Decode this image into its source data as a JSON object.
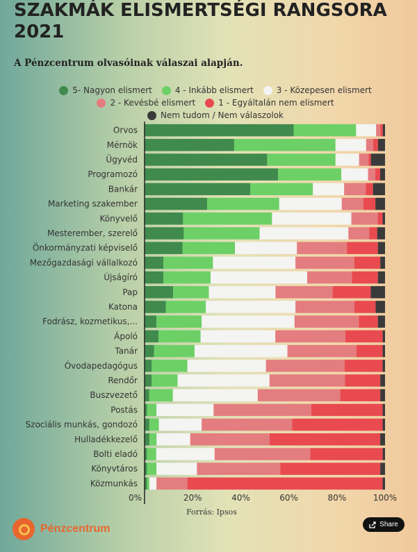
{
  "header": {
    "title": "SZAKMÁK ELISMERTSÉGI RANGSORA 2021",
    "subtitle": "A Pénzcentrum olvasóinak válaszai alapján."
  },
  "footer": {
    "source": "Forrás: Ipsos",
    "logo_text": "Pénzcentrum",
    "share_label": "Share"
  },
  "chart_data": {
    "type": "bar",
    "orientation": "horizontal",
    "stacked": true,
    "normalized": true,
    "xlim": [
      0,
      100
    ],
    "x_ticks": [
      "0%",
      "20%",
      "40%",
      "60%",
      "80%",
      "100%"
    ],
    "legend_position": "top",
    "categories": [
      "Orvos",
      "Mérnök",
      "Ügyvéd",
      "Programozó",
      "Bankár",
      "Marketing szakember",
      "Könyvelő",
      "Mesterember, szerelő",
      "Önkormányzati képviselő",
      "Mezőgazdasági vállalkozó",
      "Újságíró",
      "Pap",
      "Katona",
      "Fodrász, kozmetikus,...",
      "Ápoló",
      "Tanár",
      "Óvodapedagógus",
      "Rendőr",
      "Buszvezető",
      "Postás",
      "Szociális munkás, gondozó",
      "Hulladékkezelő",
      "Bolti eladó",
      "Könyvtáros",
      "Közmunkás"
    ],
    "series": [
      {
        "name": "5- Nagyon elismert",
        "color": "#3f8a4c",
        "values": [
          67,
          38,
          52,
          55,
          44,
          26,
          16,
          15,
          16,
          8,
          8,
          12,
          9,
          5,
          6,
          4,
          3,
          3,
          2,
          1,
          2,
          2,
          1,
          1,
          1
        ]
      },
      {
        "name": "4 - Inkább elismert",
        "color": "#6cd067",
        "values": [
          28,
          43,
          29,
          26,
          26,
          30,
          37,
          29,
          22,
          21,
          20,
          15,
          17,
          19,
          18,
          17,
          15,
          11,
          10,
          4,
          4,
          3,
          4,
          4,
          1
        ]
      },
      {
        "name": "3 - Közepesen elismert",
        "color": "#f4f4f2",
        "values": [
          9,
          13,
          10,
          11,
          13,
          26,
          33,
          34,
          26,
          35,
          41,
          28,
          38,
          39,
          32,
          39,
          33,
          39,
          36,
          24,
          18,
          14,
          25,
          17,
          3
        ]
      },
      {
        "name": "2 - Kevésbé elismert",
        "color": "#e47d80",
        "values": [
          2,
          3,
          4,
          3,
          9,
          9,
          11,
          8,
          21,
          25,
          19,
          24,
          25,
          27,
          30,
          29,
          33,
          32,
          35,
          41,
          38,
          33,
          41,
          35,
          13
        ]
      },
      {
        "name": "1 - Egyáltalán nem elismert",
        "color": "#e84a50",
        "values": [
          1,
          2,
          1,
          2,
          3,
          5,
          2,
          3,
          13,
          11,
          11,
          16,
          9,
          8,
          16,
          11,
          16,
          15,
          17,
          30,
          38,
          46,
          31,
          42,
          82
        ]
      },
      {
        "name": "Nem tudom / Nem válaszolok",
        "color": "#3a3a3a",
        "values": [
          1,
          3,
          6,
          2,
          5,
          4,
          1,
          3,
          3,
          2,
          3,
          6,
          4,
          3,
          1,
          1,
          1,
          2,
          2,
          1,
          1,
          2,
          1,
          2,
          1
        ]
      }
    ]
  }
}
